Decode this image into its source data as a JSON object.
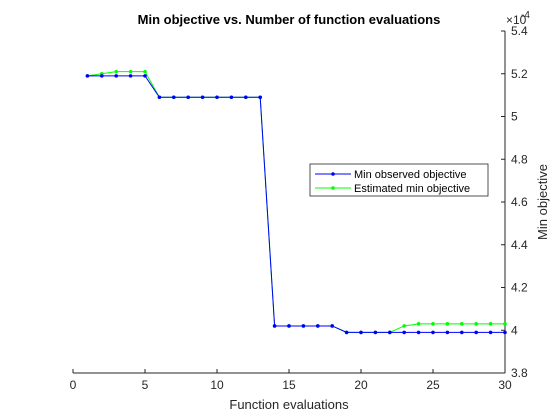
{
  "chart_data": {
    "type": "line",
    "title": "Min objective vs. Number of function evaluations",
    "xlabel": "Function evaluations",
    "ylabel": "Min objective",
    "y_exponent_label": "×10",
    "y_exponent_power": "-4",
    "xlim": [
      0,
      30
    ],
    "ylim": [
      3.8,
      5.4
    ],
    "x_ticks": [
      0,
      5,
      10,
      15,
      20,
      25,
      30
    ],
    "x_tick_labels": [
      "0",
      "5",
      "10",
      "15",
      "20",
      "25",
      "30"
    ],
    "y_ticks": [
      3.8,
      4.0,
      4.2,
      4.4,
      4.6,
      4.8,
      5.0,
      5.2,
      5.4
    ],
    "y_tick_labels": [
      "3.8",
      "4",
      "4.2",
      "4.4",
      "4.6",
      "4.8",
      "5",
      "5.2",
      "5.4"
    ],
    "y_axis_location": "right",
    "grid": false,
    "legend_location": "right-center",
    "x": [
      1,
      2,
      3,
      4,
      5,
      6,
      7,
      8,
      9,
      10,
      11,
      12,
      13,
      14,
      15,
      16,
      17,
      18,
      19,
      20,
      21,
      22,
      23,
      24,
      25,
      26,
      27,
      28,
      29,
      30
    ],
    "series": [
      {
        "name": "Min observed objective",
        "color": "#0000ff",
        "values": [
          5.19,
          5.19,
          5.19,
          5.19,
          5.19,
          5.09,
          5.09,
          5.09,
          5.09,
          5.09,
          5.09,
          5.09,
          5.09,
          4.02,
          4.02,
          4.02,
          4.02,
          4.02,
          3.99,
          3.99,
          3.99,
          3.99,
          3.99,
          3.99,
          3.99,
          3.99,
          3.99,
          3.99,
          3.99,
          3.99
        ]
      },
      {
        "name": "Estimated min objective",
        "color": "#00ff00",
        "values": [
          5.19,
          5.2,
          5.21,
          5.21,
          5.21,
          5.09,
          5.09,
          5.09,
          5.09,
          5.09,
          5.09,
          5.09,
          5.09,
          4.02,
          4.02,
          4.02,
          4.02,
          4.02,
          3.99,
          3.99,
          3.99,
          3.99,
          4.02,
          4.03,
          4.03,
          4.03,
          4.03,
          4.03,
          4.03,
          4.03
        ]
      }
    ]
  }
}
